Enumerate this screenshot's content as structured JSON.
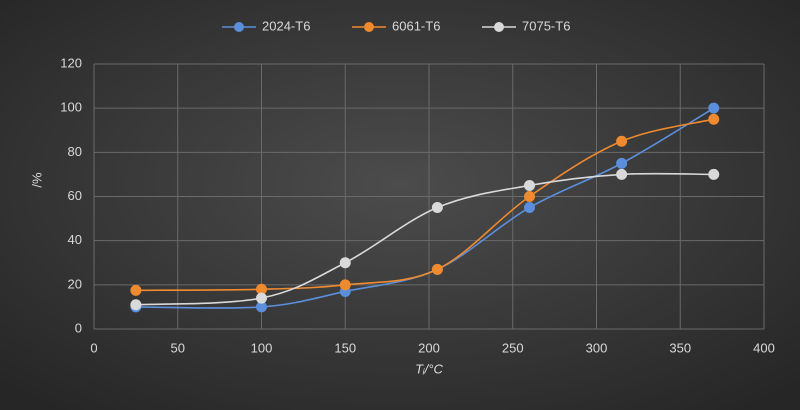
{
  "chart_data": {
    "type": "scatter-smooth",
    "x_label": "Tᵢ/°C",
    "y_label": "/%",
    "xlim": [
      0,
      400
    ],
    "xticks": [
      0,
      50,
      100,
      150,
      200,
      250,
      300,
      350,
      400
    ],
    "ylim": [
      0,
      120
    ],
    "yticks": [
      0,
      20,
      40,
      60,
      80,
      100,
      120
    ],
    "grid": true,
    "legend": "top",
    "series": [
      {
        "name": "2024-T6",
        "color": "#5b8fdc",
        "x": [
          25,
          100,
          150,
          205,
          260,
          315,
          370
        ],
        "values": [
          10,
          10,
          17,
          27,
          55,
          75,
          100
        ]
      },
      {
        "name": "6061-T6",
        "color": "#f08a2e",
        "x": [
          25,
          100,
          150,
          205,
          260,
          315,
          370
        ],
        "values": [
          17.5,
          18,
          20,
          27,
          60,
          85,
          95
        ]
      },
      {
        "name": "7075-T6",
        "color": "#d9d9d9",
        "x": [
          25,
          100,
          150,
          205,
          260,
          315,
          370
        ],
        "values": [
          11,
          14,
          30,
          55,
          65,
          70,
          70
        ]
      }
    ]
  }
}
